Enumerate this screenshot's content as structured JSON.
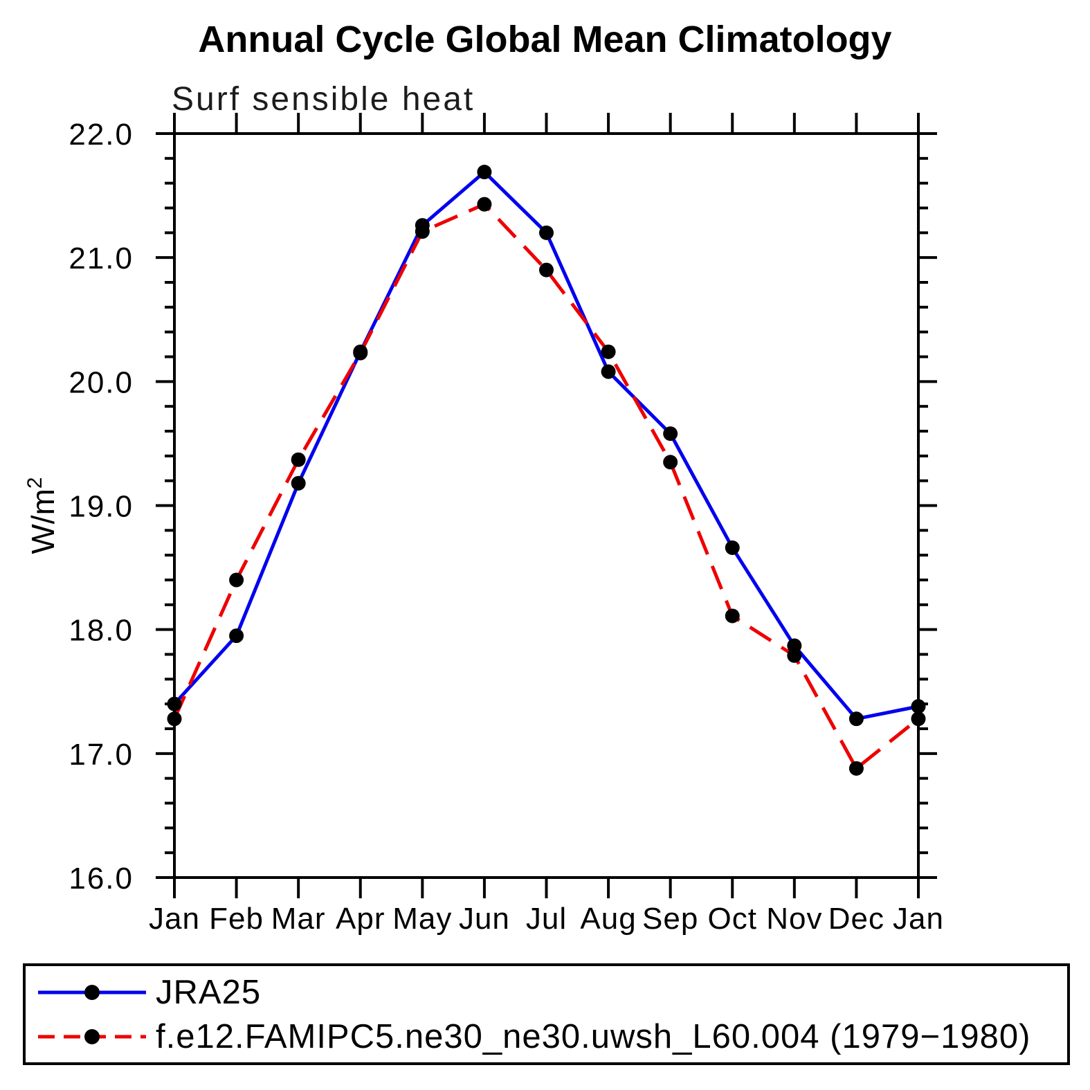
{
  "title": "Annual Cycle Global Mean Climatology",
  "subtitle": "Surf sensible heat",
  "chart_data": {
    "type": "line",
    "categories": [
      "Jan",
      "Feb",
      "Mar",
      "Apr",
      "May",
      "Jun",
      "Jul",
      "Aug",
      "Sep",
      "Oct",
      "Nov",
      "Dec",
      "Jan"
    ],
    "series": [
      {
        "name": "JRA25",
        "color": "#0000ee",
        "style": "solid",
        "values": [
          17.4,
          17.95,
          19.18,
          20.24,
          21.26,
          21.69,
          21.2,
          20.08,
          19.58,
          18.66,
          17.87,
          17.28,
          17.38
        ]
      },
      {
        "name": "f.e12.FAMIPC5.ne30_ne30.uwsh_L60.004 (1979−1980)",
        "color": "#ee0000",
        "style": "dashed",
        "values": [
          17.28,
          18.4,
          19.37,
          20.23,
          21.21,
          21.43,
          20.9,
          20.24,
          19.35,
          18.11,
          17.79,
          16.88,
          17.28
        ]
      }
    ],
    "ylabel_base": "W/m",
    "ylabel_sup": "2",
    "ylim": [
      16.0,
      22.0
    ],
    "ytick_major": 1.0,
    "ytick_minor": 0.2,
    "ytick_label_decimals": 1,
    "grid": false,
    "legend_position": "bottom-box",
    "marker": {
      "shape": "circle",
      "color": "#000000"
    },
    "axis_color": "#000000"
  }
}
